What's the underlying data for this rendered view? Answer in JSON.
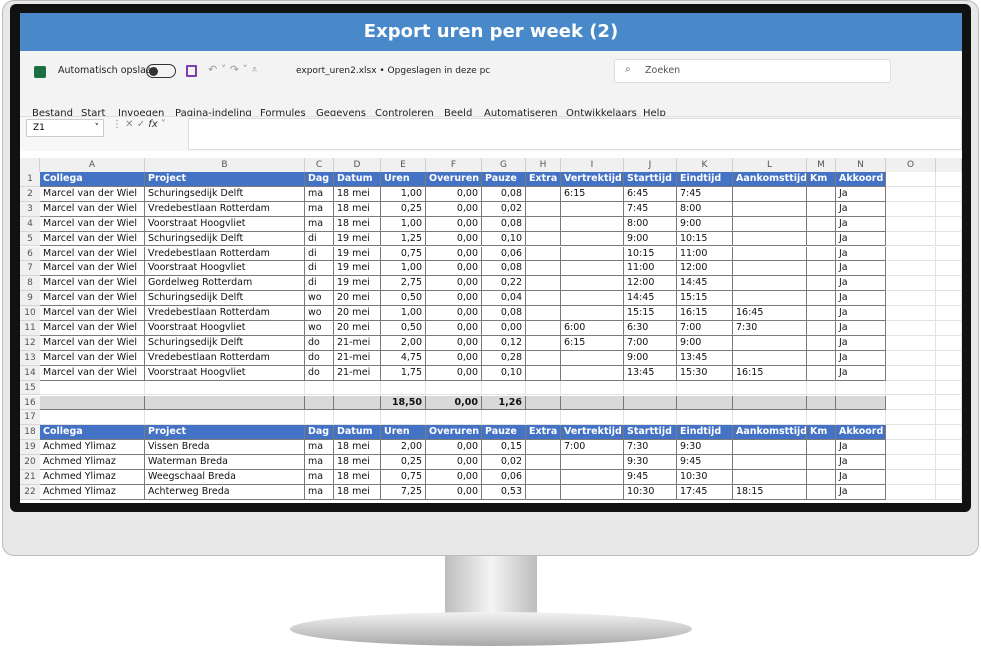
{
  "window": {
    "title": "Export uren per week (2)"
  },
  "toolbar": {
    "autosave": "Automatisch opslaan",
    "file": "export_uren2.xlsx • Opgeslagen in deze pc",
    "search": "Zoeken"
  },
  "menu": [
    "Bestand",
    "Start",
    "Invoegen",
    "Pagina-indeling",
    "Formules",
    "Gegevens",
    "Controleren",
    "Beeld",
    "Automatiseren",
    "Ontwikkelaars",
    "Help"
  ],
  "formula_bar": {
    "name_box": "Z1",
    "fx": "fx"
  },
  "sheet": {
    "columns": [
      "A",
      "B",
      "C",
      "D",
      "E",
      "F",
      "G",
      "H",
      "I",
      "J",
      "K",
      "L",
      "M",
      "N",
      "O"
    ],
    "rows": [
      {
        "row": 1,
        "style": "header",
        "cells": [
          "Collega",
          "Project",
          "Dag",
          "Datum",
          "Uren",
          "Overuren",
          "Pauze",
          "Extra",
          "Vertrektijd",
          "Starttijd",
          "Eindtijd",
          "Aankomsttijd",
          "Km",
          "Akkoord"
        ]
      },
      {
        "row": 2,
        "cells": [
          "Marcel van der Wiel",
          "Schuringsedijk Delft",
          "ma",
          "18 mei",
          "1,00",
          "0,00",
          "0,08",
          null,
          "6:15",
          "6:45",
          "7:45",
          null,
          null,
          "Ja"
        ]
      },
      {
        "row": 3,
        "cells": [
          "Marcel van der Wiel",
          "Vredebestlaan Rotterdam",
          "ma",
          "18 mei",
          "0,25",
          "0,00",
          "0,02",
          null,
          null,
          "7:45",
          "8:00",
          null,
          null,
          "Ja"
        ]
      },
      {
        "row": 4,
        "cells": [
          "Marcel van der Wiel",
          "Voorstraat Hoogvliet",
          "ma",
          "18 mei",
          "1,00",
          "0,00",
          "0,08",
          null,
          null,
          "8:00",
          "9:00",
          null,
          null,
          "Ja"
        ]
      },
      {
        "row": 5,
        "cells": [
          "Marcel van der Wiel",
          "Schuringsedijk Delft",
          "di",
          "19 mei",
          "1,25",
          "0,00",
          "0,10",
          null,
          null,
          "9:00",
          "10:15",
          null,
          null,
          "Ja"
        ]
      },
      {
        "row": 6,
        "cells": [
          "Marcel van der Wiel",
          "Vredebestlaan Rotterdam",
          "di",
          "19 mei",
          "0,75",
          "0,00",
          "0,06",
          null,
          null,
          "10:15",
          "11:00",
          null,
          null,
          "Ja"
        ]
      },
      {
        "row": 7,
        "cells": [
          "Marcel van der Wiel",
          "Voorstraat Hoogvliet",
          "di",
          "19 mei",
          "1,00",
          "0,00",
          "0,08",
          null,
          null,
          "11:00",
          "12:00",
          null,
          null,
          "Ja"
        ]
      },
      {
        "row": 8,
        "cells": [
          "Marcel van der Wiel",
          "Gordelweg Rotterdam",
          "di",
          "19 mei",
          "2,75",
          "0,00",
          "0,22",
          null,
          null,
          "12:00",
          "14:45",
          null,
          null,
          "Ja"
        ]
      },
      {
        "row": 9,
        "cells": [
          "Marcel van der Wiel",
          "Schuringsedijk Delft",
          "wo",
          "20 mei",
          "0,50",
          "0,00",
          "0,04",
          null,
          null,
          "14:45",
          "15:15",
          null,
          null,
          "Ja"
        ]
      },
      {
        "row": 10,
        "cells": [
          "Marcel van der Wiel",
          "Vredebestlaan Rotterdam",
          "wo",
          "20 mei",
          "1,00",
          "0,00",
          "0,08",
          null,
          null,
          "15:15",
          "16:15",
          "16:45",
          null,
          "Ja"
        ]
      },
      {
        "row": 11,
        "cells": [
          "Marcel van der Wiel",
          "Voorstraat Hoogvliet",
          "wo",
          "20 mei",
          "0,50",
          "0,00",
          "0,00",
          null,
          "6:00",
          "6:30",
          "7:00",
          "7:30",
          null,
          "Ja"
        ]
      },
      {
        "row": 12,
        "cells": [
          "Marcel van der Wiel",
          "Schuringsedijk Delft",
          "do",
          "21-mei",
          "2,00",
          "0,00",
          "0,12",
          null,
          "6:15",
          "7:00",
          "9:00",
          null,
          null,
          "Ja"
        ]
      },
      {
        "row": 13,
        "cells": [
          "Marcel van der Wiel",
          "Vredebestlaan Rotterdam",
          "do",
          "21-mei",
          "4,75",
          "0,00",
          "0,28",
          null,
          null,
          "9:00",
          "13:45",
          null,
          null,
          "Ja"
        ]
      },
      {
        "row": 14,
        "cells": [
          "Marcel van der Wiel",
          "Voorstraat Hoogvliet",
          "do",
          "21-mei",
          "1,75",
          "0,00",
          "0,10",
          null,
          null,
          "13:45",
          "15:30",
          "16:15",
          null,
          "Ja"
        ]
      },
      {
        "row": 15,
        "style": "blank",
        "cells": []
      },
      {
        "row": 16,
        "style": "total",
        "cells": [
          null,
          null,
          null,
          null,
          "18,50",
          "0,00",
          "1,26",
          null,
          null,
          null,
          null,
          null,
          null,
          null
        ]
      },
      {
        "row": 17,
        "style": "blank",
        "cells": []
      },
      {
        "row": 18,
        "style": "header",
        "cells": [
          "Collega",
          "Project",
          "Dag",
          "Datum",
          "Uren",
          "Overuren",
          "Pauze",
          "Extra",
          "Vertrektijd",
          "Starttijd",
          "Eindtijd",
          "Aankomsttijd",
          "Km",
          "Akkoord"
        ]
      },
      {
        "row": 19,
        "cells": [
          "Achmed Ylimaz",
          "Vissen Breda",
          "ma",
          "18 mei",
          "2,00",
          "0,00",
          "0,15",
          null,
          "7:00",
          "7:30",
          "9:30",
          null,
          null,
          "Ja"
        ]
      },
      {
        "row": 20,
        "cells": [
          "Achmed Ylimaz",
          "Waterman Breda",
          "ma",
          "18 mei",
          "0,25",
          "0,00",
          "0,02",
          null,
          null,
          "9:30",
          "9:45",
          null,
          null,
          "Ja"
        ]
      },
      {
        "row": 21,
        "cells": [
          "Achmed Ylimaz",
          "Weegschaal Breda",
          "ma",
          "18 mei",
          "0,75",
          "0,00",
          "0,06",
          null,
          null,
          "9:45",
          "10:30",
          null,
          null,
          "Ja"
        ]
      },
      {
        "row": 22,
        "cells": [
          "Achmed Ylimaz",
          "Achterweg Breda",
          "ma",
          "18 mei",
          "7,25",
          "0,00",
          "0,53",
          null,
          null,
          "10:30",
          "17:45",
          "18:15",
          null,
          "Ja"
        ]
      }
    ]
  }
}
